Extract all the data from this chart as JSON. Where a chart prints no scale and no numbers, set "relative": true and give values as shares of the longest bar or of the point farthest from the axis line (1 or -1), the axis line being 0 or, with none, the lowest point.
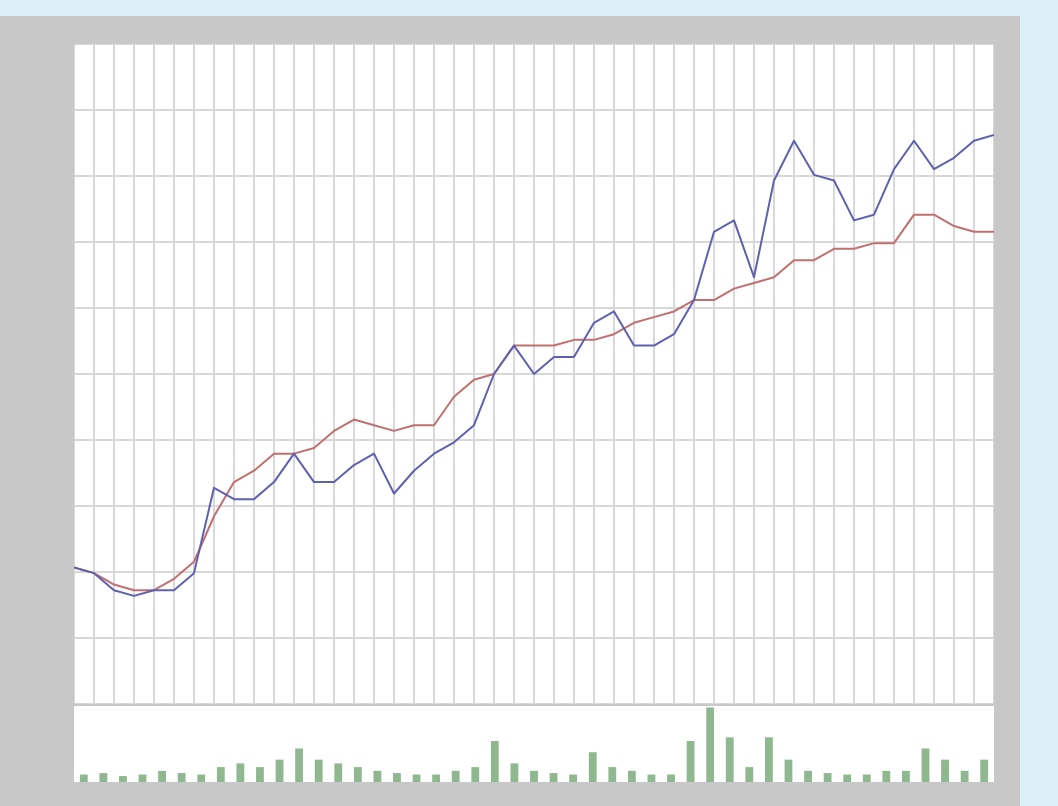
{
  "chart_data": [
    {
      "type": "line",
      "relative": true,
      "grid": true,
      "legend": false,
      "marker": "none",
      "line_style": "solid",
      "categories": [
        null,
        null,
        null,
        null,
        null,
        null,
        null,
        null,
        null,
        null,
        null,
        null,
        null,
        null,
        null,
        null,
        null,
        null,
        null,
        null,
        null,
        null,
        null,
        null,
        null,
        null,
        null,
        null,
        null,
        null,
        null,
        null,
        null,
        null,
        null,
        null,
        null,
        null,
        null,
        null,
        null,
        null,
        null,
        null,
        null,
        null,
        null
      ],
      "series": [
        {
          "color": "#6060b0",
          "values": [
            0.24,
            0.23,
            0.2,
            0.19,
            0.2,
            0.2,
            0.23,
            0.38,
            0.36,
            0.36,
            0.39,
            0.44,
            0.39,
            0.39,
            0.42,
            0.44,
            0.37,
            0.41,
            0.44,
            0.46,
            0.49,
            0.58,
            0.63,
            0.58,
            0.61,
            0.61,
            0.67,
            0.69,
            0.63,
            0.63,
            0.65,
            0.71,
            0.83,
            0.85,
            0.75,
            0.92,
            0.99,
            0.93,
            0.92,
            0.85,
            0.86,
            0.94,
            0.99,
            0.94,
            0.96,
            0.99,
            1.0
          ]
        },
        {
          "color": "#c07070",
          "values": [
            0.24,
            0.23,
            0.21,
            0.2,
            0.2,
            0.22,
            0.25,
            0.33,
            0.39,
            0.41,
            0.44,
            0.44,
            0.45,
            0.48,
            0.5,
            0.49,
            0.48,
            0.49,
            0.49,
            0.54,
            0.57,
            0.58,
            0.63,
            0.63,
            0.63,
            0.64,
            0.64,
            0.65,
            0.67,
            0.68,
            0.69,
            0.71,
            0.71,
            0.73,
            0.74,
            0.75,
            0.78,
            0.78,
            0.8,
            0.8,
            0.81,
            0.81,
            0.86,
            0.86,
            0.84,
            0.83,
            0.83
          ]
        }
      ]
    },
    {
      "type": "bar",
      "relative": true,
      "grid": false,
      "legend": false,
      "categories": [
        null,
        null,
        null,
        null,
        null,
        null,
        null,
        null,
        null,
        null,
        null,
        null,
        null,
        null,
        null,
        null,
        null,
        null,
        null,
        null,
        null,
        null,
        null,
        null,
        null,
        null,
        null,
        null,
        null,
        null,
        null,
        null,
        null,
        null,
        null,
        null,
        null,
        null,
        null,
        null,
        null,
        null,
        null,
        null,
        null,
        null,
        null
      ],
      "values": [
        0.1,
        0.12,
        0.08,
        0.1,
        0.15,
        0.12,
        0.1,
        0.2,
        0.25,
        0.2,
        0.3,
        0.45,
        0.3,
        0.25,
        0.2,
        0.15,
        0.12,
        0.1,
        0.1,
        0.15,
        0.2,
        0.55,
        0.25,
        0.15,
        0.12,
        0.1,
        0.4,
        0.2,
        0.15,
        0.1,
        0.1,
        0.55,
        1.0,
        0.6,
        0.2,
        0.6,
        0.3,
        0.15,
        0.12,
        0.1,
        0.1,
        0.15,
        0.15,
        0.45,
        0.3,
        0.15,
        0.3
      ],
      "color": "#90b890"
    }
  ]
}
